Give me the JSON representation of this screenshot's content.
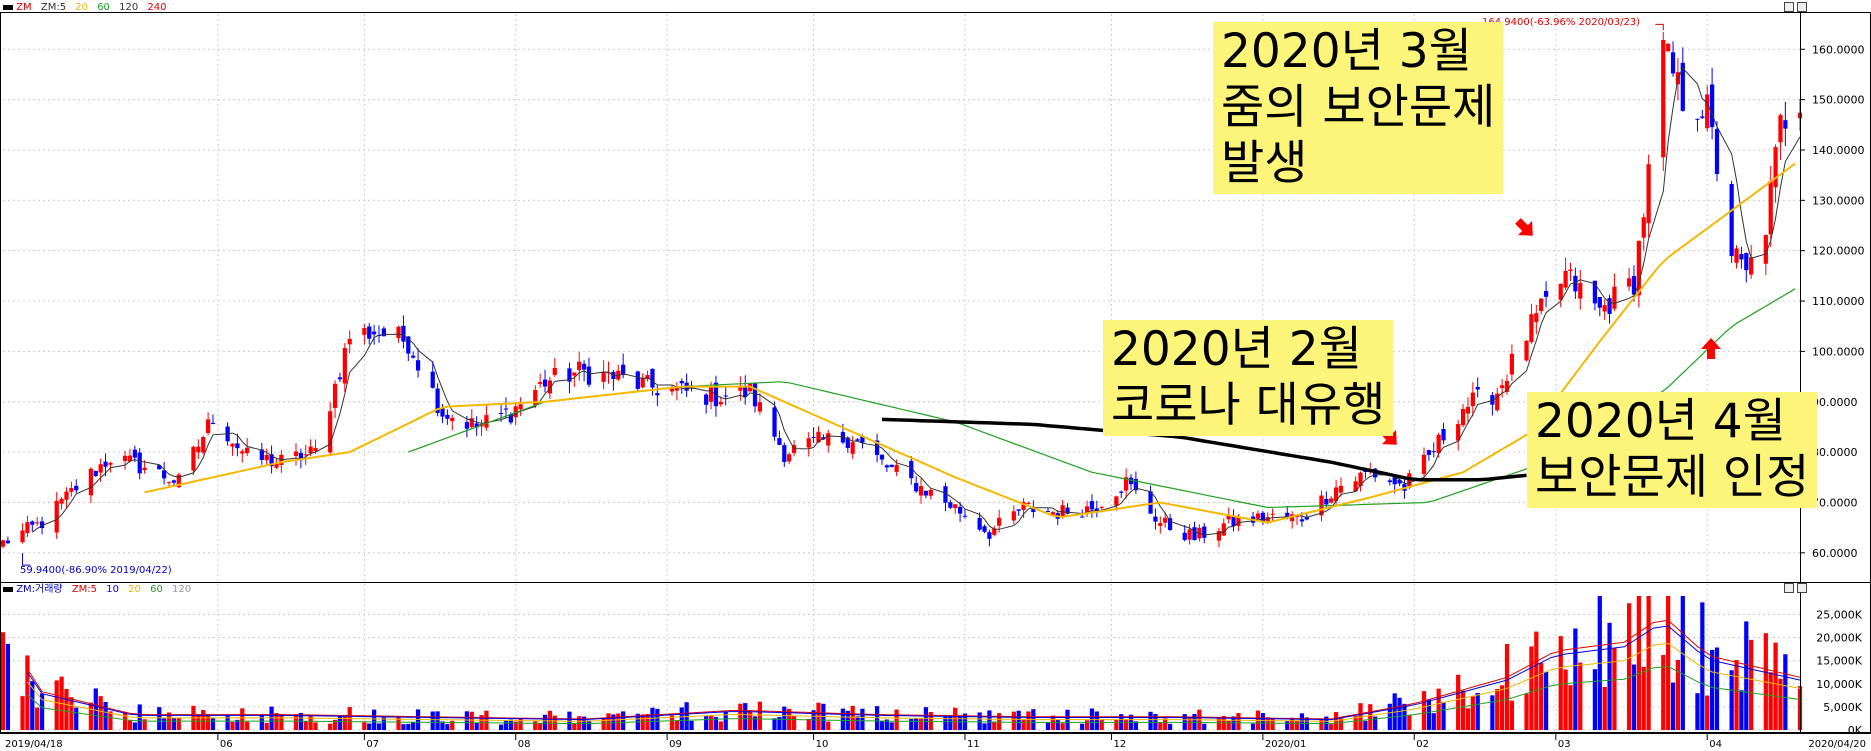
{
  "top_legend": {
    "label": "ZM",
    "items": [
      {
        "text": "ZM:5",
        "color": "#333333"
      },
      {
        "text": "20",
        "color": "#e8b800"
      },
      {
        "text": "60",
        "color": "#20a020"
      },
      {
        "text": "120",
        "color": "#333333"
      },
      {
        "text": "240",
        "color": "#e00000"
      }
    ]
  },
  "bottom_legend": {
    "label": "ZM:거래량",
    "items": [
      {
        "text": "ZM:5",
        "color": "#e00000"
      },
      {
        "text": "10",
        "color": "#0000e0"
      },
      {
        "text": "20",
        "color": "#e8b800"
      },
      {
        "text": "60",
        "color": "#20a020"
      },
      {
        "text": "120",
        "color": "#999999"
      }
    ]
  },
  "annotations": {
    "march": {
      "line1": "2020년 3월",
      "line2": "줌의 보안문제",
      "line3": "발생"
    },
    "feb": {
      "line1": "2020년 2월",
      "line2": "코로나 대유행"
    },
    "april": {
      "line1": "2020년 4월",
      "line2": "보안문제 인정"
    }
  },
  "max_label": "164.9400(-63.96% 2020/03/23)",
  "min_label": "59.9400(-86.90% 2019/04/22)",
  "colors": {
    "up": "#ff0000",
    "down": "#0000ff",
    "ma5": "#333333",
    "ma20": "#f5b800",
    "ma60": "#20a020",
    "annotation_bg": "#fdf57a",
    "arrow": "#ff0000"
  },
  "chart_data": [
    {
      "type": "candlestick",
      "title": "",
      "ylim": [
        55,
        167
      ],
      "y_ticks": [
        "160.0000",
        "150.0000",
        "140.0000",
        "130.0000",
        "120.0000",
        "110.0000",
        "100.0000",
        "90.0000",
        "80.0000",
        "70.0000",
        "60.0000"
      ],
      "x_tick_labels": [
        "2019/04/18",
        "06",
        "07",
        "08",
        "09",
        "10",
        "11",
        "12",
        "2020/01",
        "02",
        "03",
        "04",
        "2020/04/20"
      ],
      "close_path": [
        [
          "2019/04/18",
          62
        ],
        [
          "2019/04/26",
          66
        ],
        [
          "2019/05/03",
          73
        ],
        [
          "2019/05/10",
          79
        ],
        [
          "2019/05/17",
          77
        ],
        [
          "2019/05/24",
          74
        ],
        [
          "2019/05/31",
          87
        ],
        [
          "2019/06/07",
          79
        ],
        [
          "2019/06/14",
          78
        ],
        [
          "2019/06/21",
          80
        ],
        [
          "2019/06/28",
          103
        ],
        [
          "2019/07/03",
          104
        ],
        [
          "2019/07/10",
          102
        ],
        [
          "2019/07/17",
          88
        ],
        [
          "2019/07/24",
          85
        ],
        [
          "2019/07/31",
          88
        ],
        [
          "2019/08/07",
          94
        ],
        [
          "2019/08/14",
          96
        ],
        [
          "2019/08/21",
          95
        ],
        [
          "2019/08/28",
          93
        ],
        [
          "2019/09/04",
          92
        ],
        [
          "2019/09/11",
          91
        ],
        [
          "2019/09/18",
          92
        ],
        [
          "2019/09/25",
          80
        ],
        [
          "2019/10/02",
          82
        ],
        [
          "2019/10/09",
          83
        ],
        [
          "2019/10/16",
          77
        ],
        [
          "2019/10/23",
          73
        ],
        [
          "2019/10/30",
          69
        ],
        [
          "2019/11/06",
          64
        ],
        [
          "2019/11/13",
          69
        ],
        [
          "2019/11/20",
          68
        ],
        [
          "2019/11/27",
          69
        ],
        [
          "2019/12/04",
          74
        ],
        [
          "2019/12/11",
          66
        ],
        [
          "2019/12/18",
          63
        ],
        [
          "2019/12/25",
          66
        ],
        [
          "2020/01/02",
          67
        ],
        [
          "2020/01/09",
          67
        ],
        [
          "2020/01/16",
          73
        ],
        [
          "2020/01/23",
          76
        ],
        [
          "2020/01/30",
          73
        ],
        [
          "2020/02/04",
          79
        ],
        [
          "2020/02/11",
          89
        ],
        [
          "2020/02/18",
          92
        ],
        [
          "2020/02/25",
          105
        ],
        [
          "2020/03/03",
          115
        ],
        [
          "2020/03/10",
          108
        ],
        [
          "2020/03/17",
          114
        ],
        [
          "2020/03/20",
          135
        ],
        [
          "2020/03/23",
          160
        ],
        [
          "2020/03/27",
          150
        ],
        [
          "2020/04/01",
          148
        ],
        [
          "2020/04/06",
          120
        ],
        [
          "2020/04/09",
          115
        ],
        [
          "2020/04/13",
          125
        ],
        [
          "2020/04/16",
          145
        ],
        [
          "2020/04/20",
          150
        ]
      ],
      "ma20": [
        [
          "2019/05/17",
          72
        ],
        [
          "2019/06/14",
          78
        ],
        [
          "2019/06/28",
          80
        ],
        [
          "2019/07/17",
          89
        ],
        [
          "2019/08/07",
          90
        ],
        [
          "2019/09/04",
          93
        ],
        [
          "2019/09/18",
          93
        ],
        [
          "2019/10/09",
          84
        ],
        [
          "2019/10/30",
          75
        ],
        [
          "2019/11/20",
          67
        ],
        [
          "2019/12/11",
          70
        ],
        [
          "2020/01/02",
          66
        ],
        [
          "2020/01/23",
          71
        ],
        [
          "2020/02/11",
          76
        ],
        [
          "2020/02/25",
          84
        ],
        [
          "2020/03/10",
          102
        ],
        [
          "2020/03/23",
          118
        ],
        [
          "2020/04/06",
          128
        ],
        [
          "2020/04/20",
          138
        ]
      ],
      "ma60": [
        [
          "2019/07/10",
          80
        ],
        [
          "2019/08/07",
          90
        ],
        [
          "2019/09/04",
          93
        ],
        [
          "2019/09/25",
          94
        ],
        [
          "2019/10/30",
          86
        ],
        [
          "2019/11/27",
          76
        ],
        [
          "2020/01/02",
          69
        ],
        [
          "2020/02/04",
          70
        ],
        [
          "2020/02/25",
          77
        ],
        [
          "2020/03/23",
          92
        ],
        [
          "2020/04/06",
          105
        ],
        [
          "2020/04/20",
          113
        ]
      ],
      "drawn_trendline": [
        [
          "2019/10/15",
          86.5
        ],
        [
          "2019/11/15",
          85.5
        ],
        [
          "2019/12/15",
          83
        ],
        [
          "2020/01/15",
          78
        ],
        [
          "2020/02/01",
          74.5
        ],
        [
          "2020/02/15",
          74.5
        ],
        [
          "2020/02/25",
          75.5
        ]
      ],
      "max": {
        "date": "2020/03/23",
        "value": 164.94
      },
      "min": {
        "date": "2019/04/22",
        "value": 59.94
      }
    },
    {
      "type": "bar",
      "title": "",
      "ylim": [
        0,
        29000
      ],
      "y_ticks": [
        "25,000K",
        "20,000K",
        "15,000K",
        "10,000K",
        "5,000K",
        "0K"
      ],
      "period_averages_K": [
        [
          "2019/04/18",
          26000
        ],
        [
          "2019/04/25",
          9000
        ],
        [
          "2019/05",
          3500
        ],
        [
          "2019/06",
          3500
        ],
        [
          "2019/07",
          3000
        ],
        [
          "2019/08",
          2500
        ],
        [
          "2019/09",
          4500
        ],
        [
          "2019/10",
          3500
        ],
        [
          "2019/11",
          3000
        ],
        [
          "2019/12",
          3000
        ],
        [
          "2020/01",
          2500
        ],
        [
          "2020/02/01",
          6000
        ],
        [
          "2020/02/20",
          12000
        ],
        [
          "2020/03/01",
          18000
        ],
        [
          "2020/03/15",
          20000
        ],
        [
          "2020/03/23",
          26000
        ],
        [
          "2020/04/01",
          17000
        ],
        [
          "2020/04/20",
          12000
        ]
      ]
    }
  ]
}
